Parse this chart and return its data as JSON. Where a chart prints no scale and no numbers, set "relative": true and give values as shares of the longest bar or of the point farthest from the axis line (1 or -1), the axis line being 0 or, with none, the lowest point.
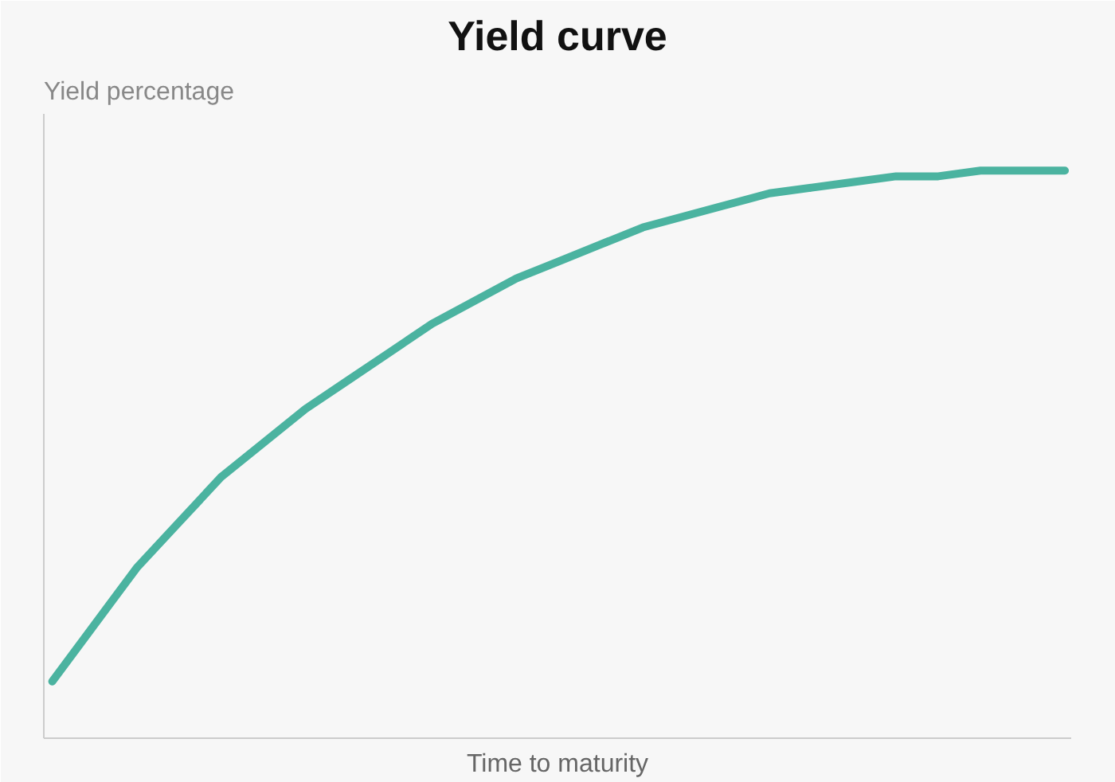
{
  "chart_data": {
    "type": "line",
    "title": "Yield curve",
    "ylabel": "Yield percentage",
    "xlabel": "Time to maturity",
    "relative": true,
    "categories": [
      null,
      null,
      null,
      null,
      null,
      null,
      null,
      null,
      null,
      null,
      null,
      null,
      null,
      null,
      null,
      null,
      null,
      null,
      null,
      null,
      null,
      null,
      null,
      null,
      null
    ],
    "series": [
      {
        "color": "#4bb3a0",
        "values": [
          0.1,
          0.2,
          0.3,
          0.38,
          0.46,
          0.52,
          0.58,
          0.63,
          0.68,
          0.73,
          0.77,
          0.81,
          0.84,
          0.87,
          0.9,
          0.92,
          0.94,
          0.96,
          0.97,
          0.98,
          0.99,
          0.99,
          1.0,
          1.0,
          1.0
        ]
      }
    ]
  }
}
